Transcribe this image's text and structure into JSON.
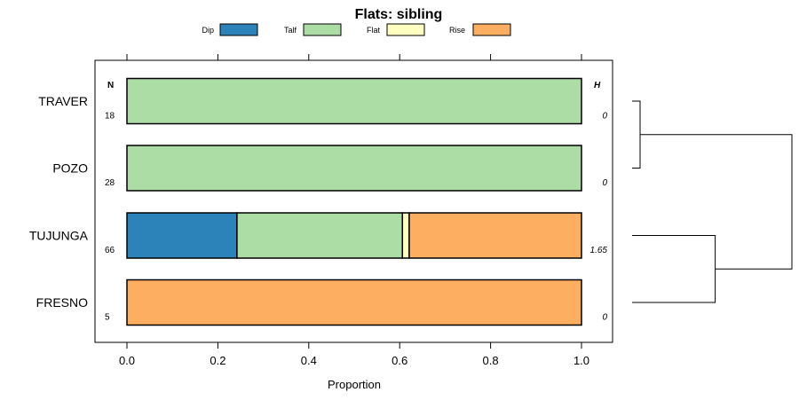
{
  "chart_data": {
    "type": "bar",
    "orientation": "horizontal",
    "stacked": true,
    "title": "Flats: sibling",
    "xlabel": "Proportion",
    "xlim": [
      -0.07,
      1.07
    ],
    "xticks": [
      "0.0",
      "0.2",
      "0.4",
      "0.6",
      "0.8",
      "1.0"
    ],
    "xtick_values": [
      0,
      0.2,
      0.4,
      0.6,
      0.8,
      1.0
    ],
    "categories": [
      "TRAVER",
      "POZO",
      "TUJUNGA",
      "FRESNO"
    ],
    "series": [
      {
        "name": "Dip",
        "color": "#2b83ba",
        "values": [
          0,
          0,
          0.242,
          0
        ]
      },
      {
        "name": "Talf",
        "color": "#abdda4",
        "values": [
          1,
          1,
          0.364,
          0
        ]
      },
      {
        "name": "Flat",
        "color": "#ffffbf",
        "values": [
          0,
          0,
          0.015,
          0
        ]
      },
      {
        "name": "Rise",
        "color": "#fdae61",
        "values": [
          0,
          0,
          0.379,
          1
        ]
      }
    ],
    "n_header": "N",
    "n_values": [
      "18",
      "28",
      "66",
      "5"
    ],
    "h_header": "H",
    "h_values": [
      "0",
      "0",
      "1.65",
      "0"
    ],
    "legend_position": "top",
    "dendrogram": {
      "leaves": [
        "TRAVER",
        "POZO",
        "TUJUNGA",
        "FRESNO"
      ],
      "merges": [
        {
          "left": "TRAVER",
          "right": "POZO",
          "height": 0.05
        },
        {
          "left": "TUJUNGA",
          "right": "FRESNO",
          "height": 0.52
        },
        {
          "left": "TRAVER+POZO",
          "right": "TUJUNGA+FRESNO",
          "height": 1.0
        }
      ]
    }
  }
}
